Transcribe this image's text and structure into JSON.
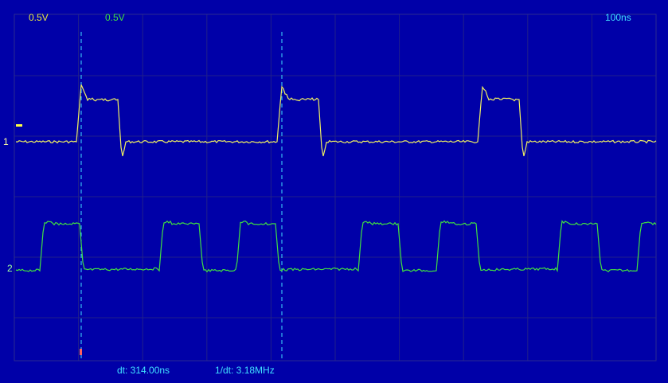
{
  "header": {
    "ch1_scale": "0.5V",
    "ch2_scale": "0.5V",
    "timebase": "100ns"
  },
  "channels": {
    "ch1_label": "1",
    "ch2_label": "2"
  },
  "footer": {
    "dt": "dt: 314.00ns",
    "inv_dt": "1/dt: 3.18MHz"
  }
}
